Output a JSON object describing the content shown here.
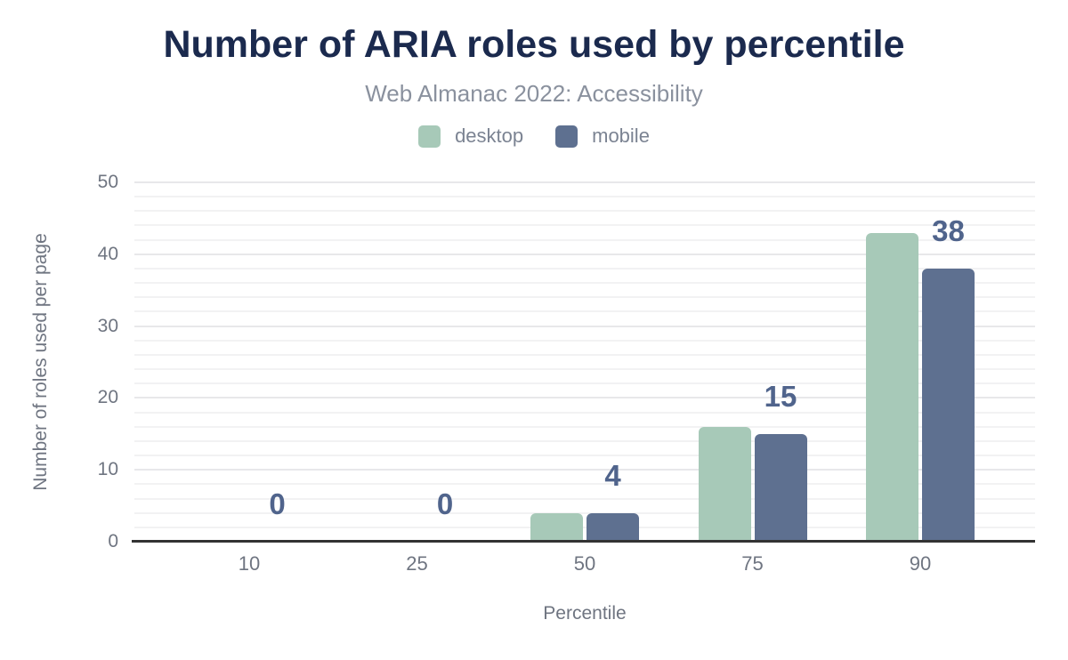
{
  "chart_data": {
    "type": "bar",
    "title": "Number of ARIA roles used by percentile",
    "subtitle": "Web Almanac 2022: Accessibility",
    "xlabel": "Percentile",
    "ylabel": "Number of roles used per page",
    "categories": [
      "10",
      "25",
      "50",
      "75",
      "90"
    ],
    "series": [
      {
        "name": "desktop",
        "color": "#a7c9b8",
        "values": [
          0,
          0,
          4,
          16,
          43
        ]
      },
      {
        "name": "mobile",
        "color": "#5e7090",
        "values": [
          0,
          0,
          4,
          15,
          38
        ]
      }
    ],
    "data_labels": {
      "attached_to_series": "mobile",
      "values": [
        "0",
        "0",
        "4",
        "15",
        "38"
      ],
      "color": "#50648c"
    },
    "ylim": [
      0,
      50
    ],
    "yticks": [
      0,
      10,
      20,
      30,
      40,
      50
    ],
    "grid": {
      "on": true,
      "minor_step": 2,
      "major_step": 10,
      "minor_color": "#f2f2f3",
      "major_color": "#e8e8ea"
    },
    "legend_position": "top",
    "colors": {
      "title_text": "#1b2a4e",
      "subtitle_text": "#8a919e",
      "axis_text": "#6f7581",
      "legend_text": "#7b8392",
      "axis_line": "#333333",
      "background": "#ffffff"
    }
  }
}
